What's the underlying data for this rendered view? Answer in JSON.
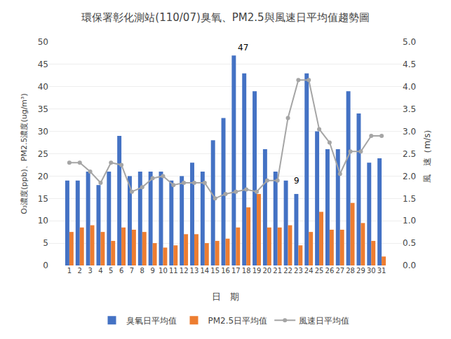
{
  "chart_data": {
    "type": "bar",
    "title": "環保署彰化測站(110/07)臭氧、PM2.5與風速日平均值趨勢圖",
    "x_label": "日　期",
    "y_label": "O₃濃度(ppb)、PM2.5濃度(ug/m³)",
    "y2_label": "風　速（m/s）",
    "categories": [
      "1",
      "2",
      "3",
      "4",
      "5",
      "6",
      "7",
      "8",
      "9",
      "10",
      "11",
      "12",
      "13",
      "14",
      "15",
      "16",
      "17",
      "18",
      "19",
      "20",
      "21",
      "22",
      "23",
      "24",
      "25",
      "26",
      "27",
      "28",
      "29",
      "30",
      "31"
    ],
    "series": [
      {
        "name": "臭氧日平均值",
        "type": "bar",
        "color": "#4472C4",
        "values": [
          19,
          19,
          21,
          18,
          21,
          29,
          20,
          21,
          21,
          21,
          19,
          20,
          23,
          21,
          28,
          33,
          47,
          43,
          39,
          26,
          21,
          19,
          16,
          43,
          30,
          26,
          26,
          39,
          34,
          23,
          24
        ]
      },
      {
        "name": "PM2.5日平均值",
        "type": "bar",
        "color": "#ED7D31",
        "values": [
          7.5,
          8.5,
          9.0,
          7.5,
          5.5,
          8.5,
          8.0,
          7.5,
          5.0,
          4.0,
          4.5,
          7.0,
          7.0,
          5.0,
          5.5,
          6.0,
          8.5,
          13.0,
          16.0,
          8.5,
          8.5,
          9.0,
          4.5,
          7.5,
          12.0,
          8.0,
          8.0,
          14.0,
          9.5,
          5.5,
          2.0
        ]
      },
      {
        "name": "風速日平均值",
        "type": "line",
        "axis": "y2",
        "color": "#A5A5A5",
        "marker": "circle",
        "values": [
          2.3,
          2.3,
          2.1,
          1.85,
          2.3,
          2.25,
          1.65,
          1.75,
          1.95,
          2.0,
          1.8,
          1.85,
          1.85,
          1.85,
          1.5,
          1.6,
          1.65,
          1.7,
          1.65,
          1.9,
          1.9,
          3.3,
          4.15,
          4.15,
          3.05,
          2.75,
          2.05,
          2.55,
          2.55,
          2.9,
          2.9
        ]
      }
    ],
    "ylim": [
      0,
      50
    ],
    "yticks": [
      0,
      5,
      10,
      15,
      20,
      25,
      30,
      35,
      40,
      45,
      50
    ],
    "y2lim": [
      0,
      5
    ],
    "y2ticks": [
      {
        "value": 0,
        "label": "0.0"
      },
      0.5,
      {
        "value": 1,
        "label": "1.0"
      },
      1.5,
      {
        "value": 2,
        "label": "2.0"
      },
      2.5,
      {
        "value": 3,
        "label": "3.0"
      },
      3.5,
      {
        "value": 4,
        "label": "4.0"
      },
      4.5,
      {
        "value": 5,
        "label": "5.0"
      }
    ],
    "annotations": [
      {
        "text": "47",
        "x": "17",
        "y": 47
      },
      {
        "text": "9",
        "x": "21",
        "y": 1.9,
        "axis": "y2"
      }
    ],
    "grid": true,
    "legend": "bottom"
  }
}
